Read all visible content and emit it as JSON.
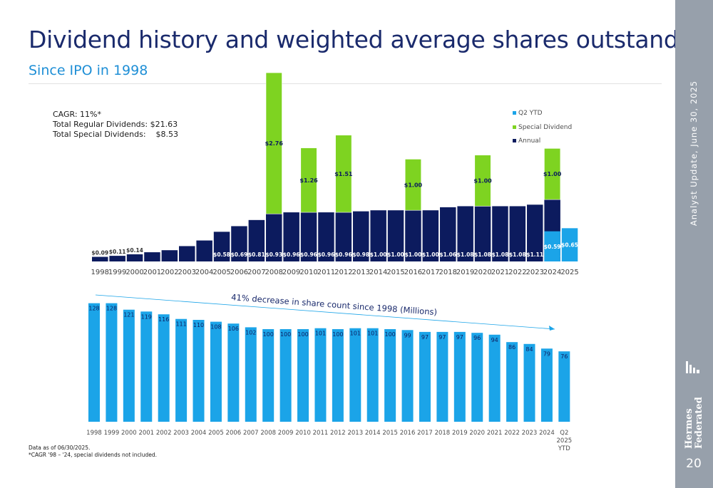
{
  "title": "Dividend history and weighted average shares outstanding",
  "subtitle": "Since IPO in 1998",
  "side_label": "Analyst Update, June 30, 2025",
  "page_number": "20",
  "logo_text": "Federated Hermes",
  "stats": {
    "cagr": "CAGR: 11%*",
    "regular": "Total Regular Dividends: $21.63",
    "special": "Total Special Dividends:    $8.53"
  },
  "footnotes": {
    "asof": "Data as of 06/30/2025.",
    "cagr_note": "*CAGR '98 – '24, special dividends not included."
  },
  "colors": {
    "annual": "#0c1b5e",
    "special": "#7ed321",
    "q2ytd": "#1ba4e8",
    "shares": "#1ba4e8",
    "sidebar": "#97a0ab",
    "title": "#1a2a6c"
  },
  "chart_data": [
    {
      "type": "bar",
      "stacked": true,
      "categories": [
        "1998",
        "1999",
        "2000",
        "2001",
        "2002",
        "2003",
        "2004",
        "2005",
        "2006",
        "2007",
        "2008",
        "2009",
        "2010",
        "2011",
        "2012",
        "2013",
        "2014",
        "2015",
        "2016",
        "2017",
        "2018",
        "2019",
        "2020",
        "2021",
        "2022",
        "2023",
        "2024",
        "2025"
      ],
      "series": [
        {
          "name": "Annual",
          "values": [
            0.09,
            0.11,
            0.14,
            0.18,
            0.22,
            0.3,
            0.41,
            0.58,
            0.69,
            0.81,
            0.93,
            0.96,
            0.96,
            0.96,
            0.96,
            0.98,
            1.0,
            1.0,
            1.0,
            1.0,
            1.06,
            1.08,
            1.08,
            1.08,
            1.08,
            1.11,
            1.21,
            null
          ],
          "labels": [
            "$0.09",
            "$0.11",
            "$0.14",
            "$0.18",
            "$0.22",
            "$0.30",
            "$0.41",
            "$0.58",
            "$0.69",
            "$0.81",
            "$0.93",
            "$0.96",
            "$0.96",
            "$0.96",
            "$0.96",
            "$0.98",
            "$1.00",
            "$1.00",
            "$1.00",
            "$1.00",
            "$1.06",
            "$1.08",
            "$1.08",
            "$1.08",
            "$1.08",
            "$1.11",
            "$1.21",
            ""
          ]
        },
        {
          "name": "Special Dividend",
          "values": [
            null,
            null,
            null,
            null,
            null,
            null,
            null,
            null,
            null,
            null,
            2.76,
            null,
            1.26,
            null,
            1.51,
            null,
            null,
            null,
            1.0,
            null,
            null,
            null,
            1.0,
            null,
            null,
            null,
            1.0,
            null
          ],
          "labels": [
            "",
            "",
            "",
            "",
            "",
            "",
            "",
            "",
            "",
            "",
            "$2.76",
            "",
            "$1.26",
            "",
            "$1.51",
            "",
            "",
            "",
            "$1.00",
            "",
            "",
            "",
            "$1.00",
            "",
            "",
            "",
            "$1.00",
            ""
          ]
        },
        {
          "name": "Q2 YTD",
          "values": [
            null,
            null,
            null,
            null,
            null,
            null,
            null,
            null,
            null,
            null,
            null,
            null,
            null,
            null,
            null,
            null,
            null,
            null,
            null,
            null,
            null,
            null,
            null,
            null,
            null,
            null,
            0.59,
            0.65
          ],
          "labels": [
            "",
            "",
            "",
            "",
            "",
            "",
            "",
            "",
            "",
            "",
            "",
            "",
            "",
            "",
            "",
            "",
            "",
            "",
            "",
            "",
            "",
            "",
            "",
            "",
            "",
            "",
            "$0.59",
            "$0.65"
          ]
        }
      ],
      "legend": [
        "Q2 YTD",
        "Special Dividend",
        "Annual"
      ],
      "legend_position": "top-right",
      "ylim": [
        0,
        3.9
      ],
      "grid": false
    },
    {
      "type": "bar",
      "categories": [
        "1998",
        "1999",
        "2000",
        "2001",
        "2002",
        "2003",
        "2004",
        "2005",
        "2006",
        "2007",
        "2008",
        "2009",
        "2010",
        "2011",
        "2012",
        "2013",
        "2014",
        "2015",
        "2016",
        "2017",
        "2018",
        "2019",
        "2020",
        "2021",
        "2022",
        "2023",
        "2024",
        "Q2 2025 YTD"
      ],
      "category_lines": [
        [
          "1998"
        ],
        [
          "1999"
        ],
        [
          "2000"
        ],
        [
          "2001"
        ],
        [
          "2002"
        ],
        [
          "2003"
        ],
        [
          "2004"
        ],
        [
          "2005"
        ],
        [
          "2006"
        ],
        [
          "2007"
        ],
        [
          "2008"
        ],
        [
          "2009"
        ],
        [
          "2010"
        ],
        [
          "2011"
        ],
        [
          "2012"
        ],
        [
          "2013"
        ],
        [
          "2014"
        ],
        [
          "2015"
        ],
        [
          "2016"
        ],
        [
          "2017"
        ],
        [
          "2018"
        ],
        [
          "2019"
        ],
        [
          "2020"
        ],
        [
          "2021"
        ],
        [
          "2022"
        ],
        [
          "2023"
        ],
        [
          "2024"
        ],
        [
          "Q2",
          "2025",
          "YTD"
        ]
      ],
      "series": [
        {
          "values": [
            128,
            128,
            121,
            119,
            116,
            111,
            110,
            108,
            106,
            102,
            100,
            100,
            100,
            101,
            100,
            101,
            101,
            100,
            99,
            97,
            97,
            97,
            96,
            94,
            86,
            84,
            79,
            76
          ]
        }
      ],
      "annotation": "41% decrease in share count since 1998 (Millions)",
      "ylim": [
        0,
        128
      ],
      "grid": false
    }
  ]
}
